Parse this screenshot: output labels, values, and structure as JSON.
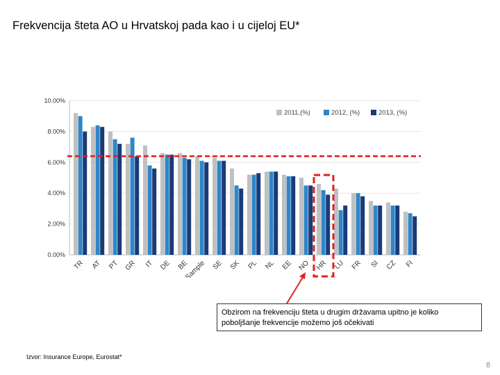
{
  "slide": {
    "title": "Frekvencija šteta AO u Hrvatskoj pada kao i u cijeloj EU*",
    "callout_text": "Obzirom na frekvenciju šteta u drugim državama upitno je koliko poboljšanje frekvencije možemo još očekivati",
    "source_note": "Izvor: Insurance Europe, Eurostat*",
    "page_number": "8"
  },
  "colors": {
    "series_2011": "#c0c0c0",
    "series_2012": "#2e86c8",
    "series_2013": "#1a3a78",
    "reference_line": "#e02020",
    "highlight_box": "#e02020",
    "gridline": "#e6e6e6"
  },
  "chart_data": {
    "type": "bar",
    "title": "",
    "xlabel": "",
    "ylabel": "",
    "ylim": [
      0,
      10
    ],
    "y_ticks": [
      "0.00%",
      "2.00%",
      "4.00%",
      "6.00%",
      "8.00%",
      "10.00%"
    ],
    "categories": [
      "TR",
      "AT",
      "PT",
      "GR",
      "IT",
      "DE",
      "BE",
      "Sample",
      "SE",
      "SK",
      "PL",
      "NL",
      "EE",
      "NO",
      "HR",
      "LU",
      "FR",
      "SI",
      "CZ",
      "FI"
    ],
    "series": [
      {
        "name": "2011,(%)",
        "values": [
          9.2,
          8.3,
          8.0,
          7.2,
          7.1,
          6.6,
          6.6,
          6.4,
          6.3,
          5.6,
          5.2,
          5.4,
          5.2,
          5.0,
          4.6,
          4.3,
          4.0,
          3.5,
          3.4,
          2.8
        ]
      },
      {
        "name": "2012, (%)",
        "values": [
          9.0,
          8.4,
          7.5,
          7.6,
          5.8,
          6.5,
          6.3,
          6.1,
          6.1,
          4.5,
          5.2,
          5.4,
          5.1,
          4.5,
          4.2,
          2.9,
          4.0,
          3.2,
          3.2,
          2.7
        ]
      },
      {
        "name": "2013, (%)",
        "values": [
          8.0,
          8.3,
          7.2,
          6.4,
          5.6,
          6.5,
          6.2,
          6.0,
          6.1,
          4.3,
          5.3,
          5.4,
          5.1,
          4.5,
          3.9,
          3.2,
          3.8,
          3.2,
          3.2,
          2.5
        ]
      }
    ],
    "reference_line_value": 6.4,
    "highlighted_category": "HR",
    "legend_position": "top-right",
    "grid": true
  }
}
